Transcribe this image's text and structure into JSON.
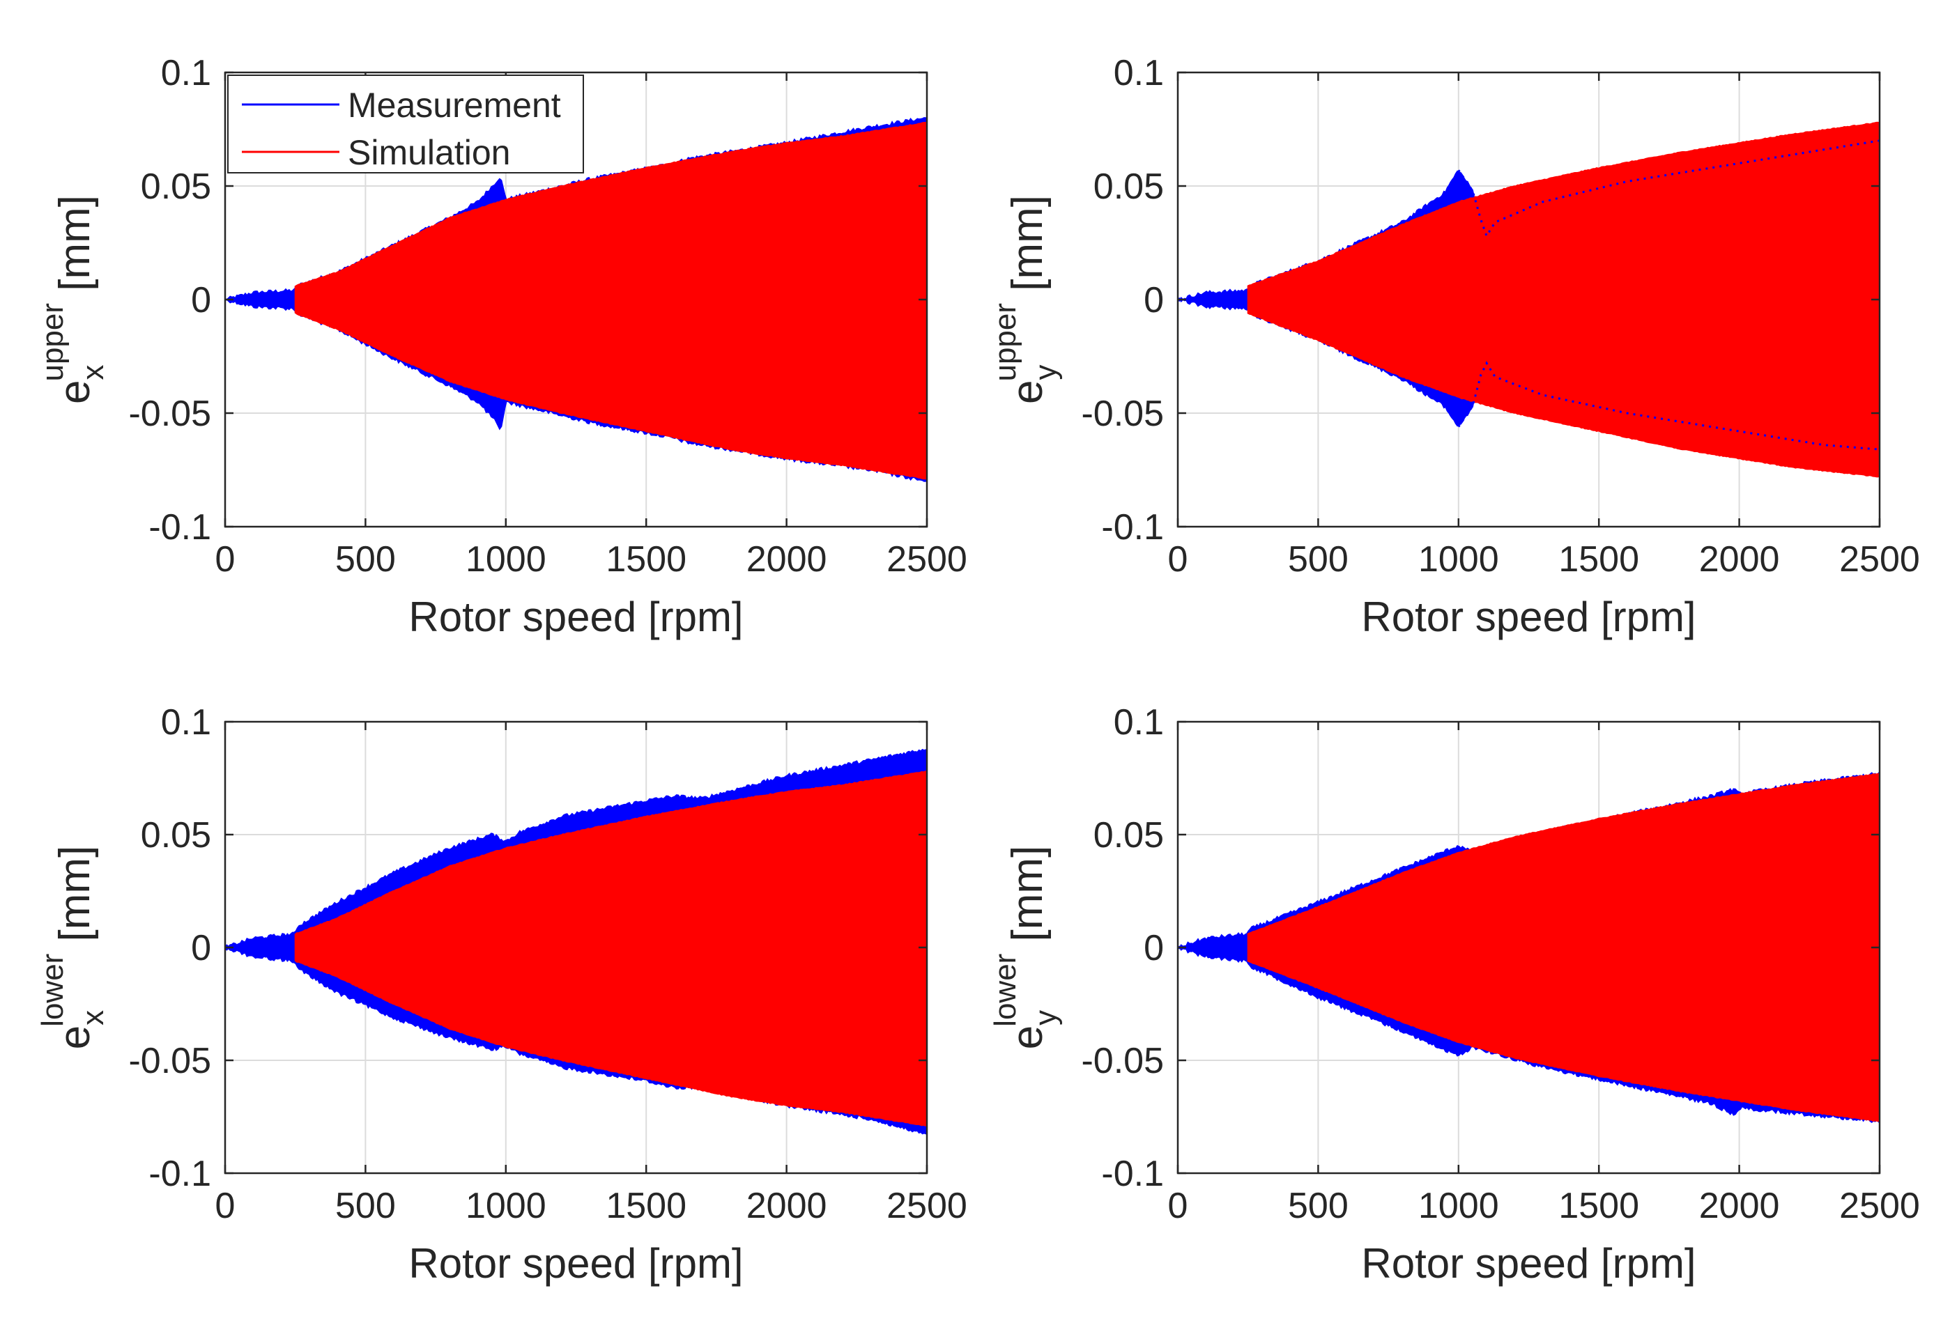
{
  "colors": {
    "measurement": "#0000FF",
    "simulation": "#FF0000",
    "grid": "#DCDCDC",
    "axis": "#262626",
    "background": "#FFFFFF"
  },
  "legend": {
    "entries": [
      "Measurement",
      "Simulation"
    ],
    "placement": "top-left"
  },
  "chart_data": [
    {
      "type": "area",
      "id": "ex-upper",
      "ylabel": {
        "base": "e",
        "sub": "x",
        "sup": "upper",
        "unit": "[mm]"
      },
      "xlabel": "Rotor speed [rpm]",
      "xlim": [
        0,
        2500
      ],
      "ylim": [
        -0.1,
        0.1
      ],
      "xticks": [
        "0",
        "500",
        "1000",
        "1500",
        "2000",
        "2500"
      ],
      "yticks": [
        "0.1",
        "0.05",
        "0",
        "-0.05",
        "-0.1"
      ],
      "grid": true,
      "legend": true,
      "series": [
        {
          "name": "Measurement",
          "x": [
            0,
            100,
            250,
            255,
            400,
            600,
            800,
            900,
            960,
            980,
            1000,
            1300,
            1600,
            1650,
            2000,
            2300,
            2500
          ],
          "upper": [
            0.0,
            0.003,
            0.004,
            0.006,
            0.012,
            0.024,
            0.036,
            0.043,
            0.051,
            0.054,
            0.044,
            0.053,
            0.06,
            0.062,
            0.069,
            0.076,
            0.08
          ],
          "lower": [
            0.0,
            -0.003,
            -0.004,
            -0.006,
            -0.013,
            -0.026,
            -0.038,
            -0.045,
            -0.053,
            -0.058,
            -0.045,
            -0.054,
            -0.061,
            -0.063,
            -0.07,
            -0.075,
            -0.08
          ]
        },
        {
          "name": "Simulation",
          "x": [
            250,
            400,
            600,
            800,
            1000,
            1200,
            1500,
            1800,
            2000,
            2200,
            2500
          ],
          "upper": [
            0.006,
            0.012,
            0.024,
            0.036,
            0.044,
            0.05,
            0.058,
            0.065,
            0.069,
            0.072,
            0.078
          ],
          "lower": [
            -0.006,
            -0.013,
            -0.025,
            -0.036,
            -0.044,
            -0.05,
            -0.058,
            -0.066,
            -0.07,
            -0.073,
            -0.079
          ]
        }
      ]
    },
    {
      "type": "area",
      "id": "ey-upper",
      "ylabel": {
        "base": "e",
        "sub": "y",
        "sup": "upper",
        "unit": "[mm]"
      },
      "xlabel": "Rotor speed [rpm]",
      "xlim": [
        0,
        2500
      ],
      "ylim": [
        -0.1,
        0.1
      ],
      "xticks": [
        "0",
        "500",
        "1000",
        "1500",
        "2000",
        "2500"
      ],
      "yticks": [
        "0.1",
        "0.05",
        "0",
        "-0.05",
        "-0.1"
      ],
      "grid": true,
      "legend": false,
      "series": [
        {
          "name": "Measurement",
          "x": [
            0,
            100,
            250,
            255,
            500,
            800,
            950,
            1000,
            1050,
            1080,
            1100,
            1130,
            1300,
            1600,
            2000,
            2300,
            2500
          ],
          "upper": [
            0.0,
            0.003,
            0.004,
            0.006,
            0.017,
            0.034,
            0.047,
            0.057,
            0.048,
            0.035,
            0.028,
            0.034,
            0.043,
            0.052,
            0.06,
            0.066,
            0.07
          ],
          "lower": [
            0.0,
            -0.003,
            -0.004,
            -0.006,
            -0.018,
            -0.035,
            -0.047,
            -0.056,
            -0.047,
            -0.033,
            -0.028,
            -0.034,
            -0.042,
            -0.05,
            -0.058,
            -0.064,
            -0.066
          ]
        },
        {
          "name": "Simulation",
          "x": [
            250,
            500,
            800,
            1000,
            1200,
            1500,
            1800,
            2000,
            2200,
            2500
          ],
          "upper": [
            0.006,
            0.017,
            0.033,
            0.043,
            0.05,
            0.058,
            0.065,
            0.069,
            0.073,
            0.078
          ],
          "lower": [
            -0.006,
            -0.018,
            -0.034,
            -0.043,
            -0.05,
            -0.058,
            -0.066,
            -0.07,
            -0.074,
            -0.078
          ]
        }
      ]
    },
    {
      "type": "area",
      "id": "ex-lower",
      "ylabel": {
        "base": "e",
        "sub": "x",
        "sup": "lower",
        "unit": "[mm]"
      },
      "xlabel": "Rotor speed [rpm]",
      "xlim": [
        0,
        2500
      ],
      "ylim": [
        -0.1,
        0.1
      ],
      "xticks": [
        "0",
        "500",
        "1000",
        "1500",
        "2000",
        "2500"
      ],
      "yticks": [
        "0.1",
        "0.05",
        "0",
        "-0.05",
        "-0.1"
      ],
      "grid": true,
      "legend": false,
      "series": [
        {
          "name": "Measurement",
          "x": [
            0,
            100,
            250,
            255,
            400,
            600,
            800,
            950,
            1000,
            1050,
            1200,
            1500,
            1600,
            1700,
            2000,
            2300,
            2500
          ],
          "upper": [
            0.0,
            0.004,
            0.006,
            0.009,
            0.02,
            0.033,
            0.044,
            0.05,
            0.047,
            0.051,
            0.058,
            0.065,
            0.067,
            0.066,
            0.076,
            0.083,
            0.088
          ],
          "lower": [
            0.0,
            -0.004,
            -0.006,
            -0.009,
            -0.02,
            -0.031,
            -0.04,
            -0.045,
            -0.044,
            -0.047,
            -0.053,
            -0.059,
            -0.062,
            -0.062,
            -0.07,
            -0.076,
            -0.083
          ]
        },
        {
          "name": "Simulation",
          "x": [
            250,
            400,
            600,
            800,
            1000,
            1200,
            1500,
            1800,
            2000,
            2200,
            2500
          ],
          "upper": [
            0.006,
            0.013,
            0.025,
            0.036,
            0.044,
            0.05,
            0.058,
            0.065,
            0.069,
            0.072,
            0.078
          ],
          "lower": [
            -0.006,
            -0.013,
            -0.025,
            -0.036,
            -0.044,
            -0.05,
            -0.058,
            -0.066,
            -0.07,
            -0.073,
            -0.079
          ]
        }
      ]
    },
    {
      "type": "area",
      "id": "ey-lower",
      "ylabel": {
        "base": "e",
        "sub": "y",
        "sup": "lower",
        "unit": "[mm]"
      },
      "xlabel": "Rotor speed [rpm]",
      "xlim": [
        0,
        2500
      ],
      "ylim": [
        -0.1,
        0.1
      ],
      "xticks": [
        "0",
        "500",
        "1000",
        "1500",
        "2000",
        "2500"
      ],
      "yticks": [
        "0.1",
        "0.05",
        "0",
        "-0.05",
        "-0.1"
      ],
      "grid": true,
      "legend": false,
      "series": [
        {
          "name": "Measurement",
          "x": [
            0,
            100,
            250,
            255,
            500,
            800,
            1000,
            1050,
            1300,
            1600,
            1900,
            1980,
            2000,
            2250,
            2500
          ],
          "upper": [
            0.0,
            0.004,
            0.006,
            0.008,
            0.02,
            0.035,
            0.045,
            0.042,
            0.051,
            0.059,
            0.067,
            0.07,
            0.068,
            0.073,
            0.077
          ],
          "lower": [
            0.0,
            -0.004,
            -0.006,
            -0.008,
            -0.022,
            -0.037,
            -0.048,
            -0.044,
            -0.053,
            -0.061,
            -0.069,
            -0.074,
            -0.071,
            -0.074,
            -0.077
          ]
        },
        {
          "name": "Simulation",
          "x": [
            250,
            500,
            800,
            1000,
            1200,
            1500,
            1800,
            2000,
            2200,
            2500
          ],
          "upper": [
            0.006,
            0.018,
            0.033,
            0.042,
            0.049,
            0.057,
            0.064,
            0.068,
            0.072,
            0.077
          ],
          "lower": [
            -0.006,
            -0.018,
            -0.033,
            -0.042,
            -0.049,
            -0.057,
            -0.064,
            -0.068,
            -0.072,
            -0.077
          ]
        }
      ]
    }
  ]
}
